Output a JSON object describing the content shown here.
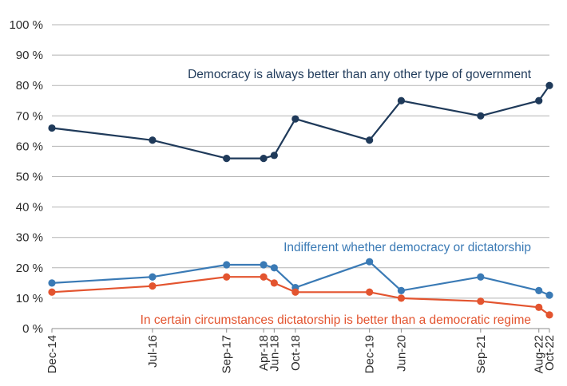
{
  "chart_data": {
    "type": "line",
    "title": "",
    "xlabel": "",
    "ylabel": "",
    "ylim": [
      0,
      100
    ],
    "yticks": [
      0,
      10,
      20,
      30,
      40,
      50,
      60,
      70,
      80,
      90,
      100
    ],
    "ytick_labels": [
      "0 %",
      "10 %",
      "20 %",
      "30 %",
      "40 %",
      "50 %",
      "60 %",
      "70 %",
      "80 %",
      "90 %",
      "100 %"
    ],
    "grid": true,
    "x": [
      "2014-12",
      "2016-07",
      "2017-09",
      "2018-04",
      "2018-06",
      "2018-10",
      "2019-12",
      "2020-06",
      "2021-09",
      "2022-08",
      "2022-10"
    ],
    "xtick_labels": [
      "Dec-14",
      "Jul-16",
      "Sep-17",
      "Apr-18",
      "Jun-18",
      "Oct-18",
      "Dec-19",
      "Jun-20",
      "Sep-21",
      "Aug-22",
      "Oct-22"
    ],
    "series": [
      {
        "name": "Democracy is always better than any other type of government",
        "color": "#1f3a5a",
        "x": [
          "2014-12",
          "2016-07",
          "2017-09",
          "2018-04",
          "2018-06",
          "2018-10",
          "2019-12",
          "2020-06",
          "2021-09",
          "2022-08",
          "2022-10"
        ],
        "values": [
          66,
          62,
          56,
          56,
          57,
          69,
          62,
          75,
          70,
          75,
          80
        ]
      },
      {
        "name": "Indifferent whether democracy or dictatorship",
        "color": "#3a7ab5",
        "x": [
          "2014-12",
          "2016-07",
          "2017-09",
          "2018-04",
          "2018-06",
          "2018-10",
          "2019-12",
          "2020-06",
          "2021-09",
          "2022-08",
          "2022-10"
        ],
        "values": [
          15,
          17,
          21,
          21,
          20,
          13.5,
          22,
          12.5,
          17,
          12.5,
          11
        ]
      },
      {
        "name": "In certain circumstances dictatorship is better than a democratic regime",
        "color": "#e3542f",
        "x": [
          "2014-12",
          "2016-07",
          "2017-09",
          "2018-04",
          "2018-06",
          "2018-10",
          "2019-12",
          "2020-06",
          "2021-09",
          "2022-08",
          "2022-10"
        ],
        "values": [
          12,
          14,
          17,
          17,
          15,
          12,
          12,
          10,
          9,
          7,
          4.5
        ]
      }
    ]
  }
}
